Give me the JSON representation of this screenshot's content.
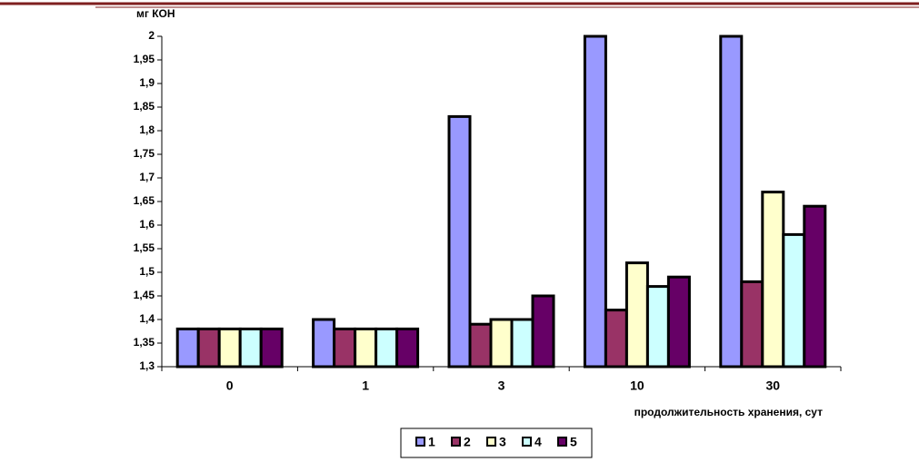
{
  "chart_data": {
    "type": "bar",
    "y_label": "мг КОН",
    "x_label": "продолжительность хранения, сут",
    "categories": [
      "0",
      "1",
      "3",
      "10",
      "30"
    ],
    "series": [
      {
        "name": "1",
        "color": "#9999ff",
        "values": [
          1.38,
          1.4,
          1.83,
          2,
          2
        ]
      },
      {
        "name": "2",
        "color": "#993366",
        "values": [
          1.38,
          1.38,
          1.39,
          1.42,
          1.48
        ]
      },
      {
        "name": "3",
        "color": "#ffffcc",
        "values": [
          1.38,
          1.38,
          1.4,
          1.52,
          1.67
        ]
      },
      {
        "name": "4",
        "color": "#ccffff",
        "values": [
          1.38,
          1.38,
          1.4,
          1.47,
          1.58
        ]
      },
      {
        "name": "5",
        "color": "#660066",
        "values": [
          1.38,
          1.38,
          1.45,
          1.49,
          1.64
        ]
      }
    ],
    "ylim": [
      1.3,
      2
    ],
    "yticks": [
      {
        "value": 1.3,
        "label": "1,3"
      },
      {
        "value": 1.35,
        "label": "1,35"
      },
      {
        "value": 1.4,
        "label": "1,4"
      },
      {
        "value": 1.45,
        "label": "1,45"
      },
      {
        "value": 1.5,
        "label": "1,5"
      },
      {
        "value": 1.55,
        "label": "1,55"
      },
      {
        "value": 1.6,
        "label": "1,6"
      },
      {
        "value": 1.65,
        "label": "1,65"
      },
      {
        "value": 1.7,
        "label": "1,7"
      },
      {
        "value": 1.75,
        "label": "1,75"
      },
      {
        "value": 1.8,
        "label": "1,8"
      },
      {
        "value": 1.85,
        "label": "1,85"
      },
      {
        "value": 1.9,
        "label": "1,9"
      },
      {
        "value": 1.95,
        "label": "1,95"
      },
      2
    ],
    "grid": false
  }
}
